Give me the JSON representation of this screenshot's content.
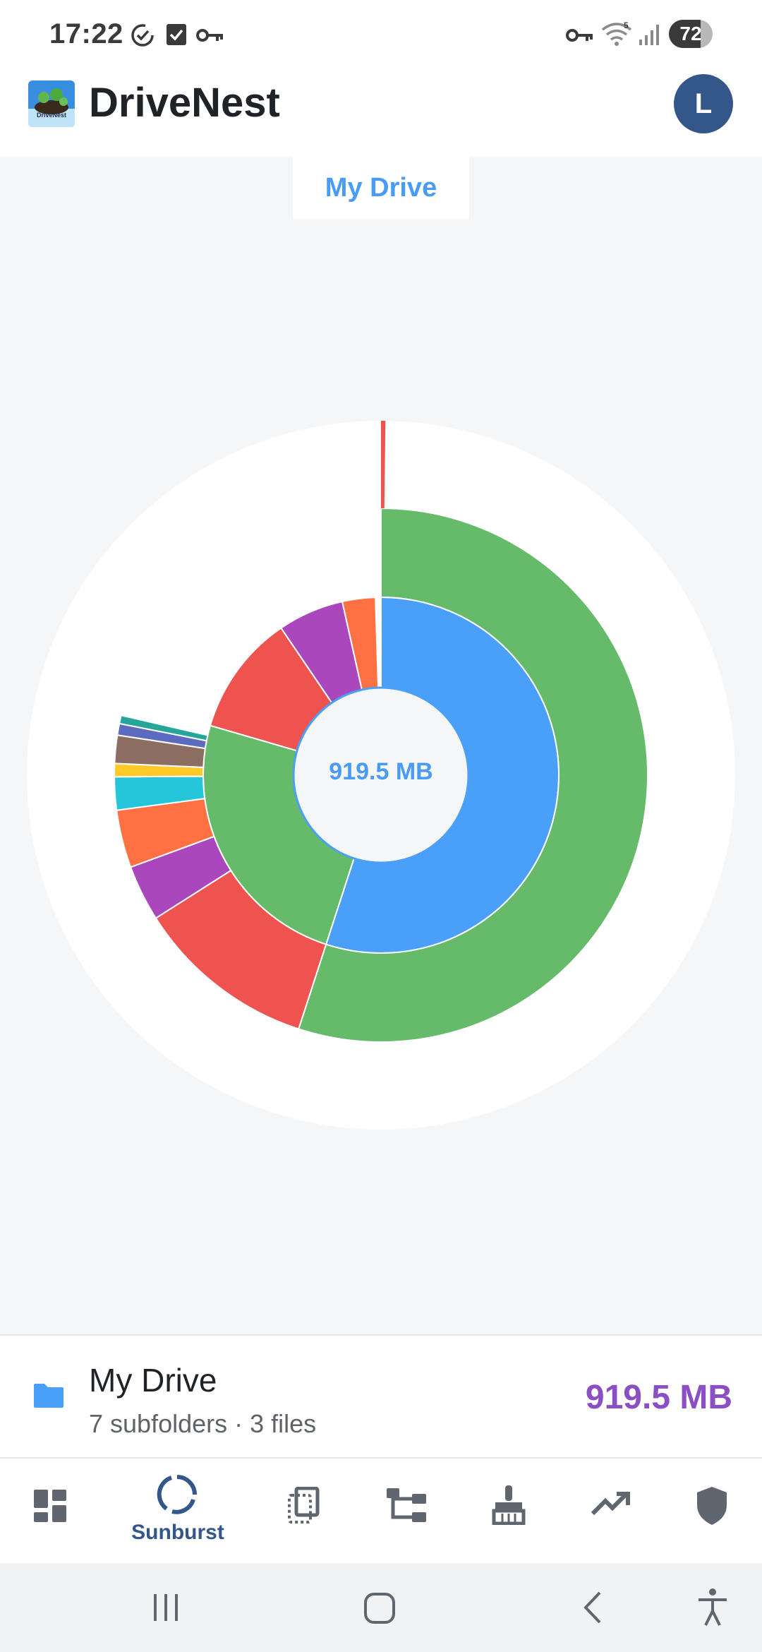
{
  "status_bar": {
    "time": "17:22",
    "battery": "72",
    "battery_level": 0.72,
    "left_icons": [
      "check-circle-icon",
      "checkbox-icon",
      "key-icon"
    ],
    "right_icons": [
      "key-icon",
      "wifi-icon",
      "signal-icon",
      "battery-icon"
    ]
  },
  "header": {
    "app_name": "DriveNest",
    "logo_text": "DriveNest",
    "avatar_initial": "L"
  },
  "breadcrumb": {
    "current": "My Drive"
  },
  "chart_data": {
    "type": "sunburst",
    "center_label": "919.5 MB",
    "rings": [
      {
        "level": 1,
        "segments": [
          {
            "share": 0.55,
            "color": "#4a9ff8"
          },
          {
            "share": 0.245,
            "color": "#66bb6a"
          },
          {
            "share": 0.11,
            "color": "#ef5350"
          },
          {
            "share": 0.06,
            "color": "#ab47bc"
          },
          {
            "share": 0.03,
            "color": "#ff7043"
          }
        ]
      },
      {
        "level": 2,
        "segments": [
          {
            "share": 0.55,
            "color": "#66bb6a"
          },
          {
            "share": 0.11,
            "color": "#ef5350"
          },
          {
            "share": 0.034,
            "color": "#ab47bc"
          },
          {
            "share": 0.035,
            "color": "#ff7043"
          },
          {
            "share": 0.02,
            "color": "#26c6da"
          },
          {
            "share": 0.008,
            "color": "#ffca28"
          },
          {
            "share": 0.017,
            "color": "#8d6e63"
          },
          {
            "share": 0.007,
            "color": "#5c6bc0"
          },
          {
            "share": 0.005,
            "color": "#26a69a"
          }
        ]
      },
      {
        "level": 3,
        "segments": [
          {
            "share": 0.002,
            "color": "#ef5350"
          }
        ]
      }
    ]
  },
  "selected": {
    "name": "My Drive",
    "meta": "7 subfolders · 3 files",
    "size": "919.5 MB"
  },
  "bottom_nav": {
    "active": "Sunburst",
    "items": [
      "dashboard-icon",
      "sunburst-icon",
      "copies-icon",
      "tree-icon",
      "cleanup-icon",
      "trends-icon",
      "security-icon"
    ]
  },
  "system_nav": {
    "icons": [
      "recent-apps-icon",
      "home-icon",
      "back-icon",
      "accessibility-icon"
    ]
  }
}
